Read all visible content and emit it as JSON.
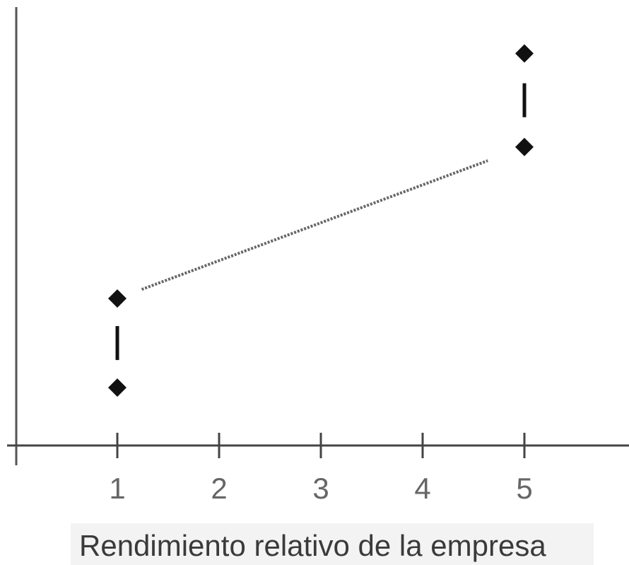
{
  "chart_data": {
    "type": "scatter",
    "title": "",
    "xlabel": "Rendimiento relativo de la empresa",
    "ylabel": "",
    "x_ticks": [
      "1",
      "2",
      "3",
      "4",
      "5"
    ],
    "xlim": [
      0,
      6
    ],
    "ylim": [
      0,
      10
    ],
    "grid": false,
    "points": [
      {
        "x": 1,
        "y": 1.3
      },
      {
        "x": 1,
        "y": 3.3
      },
      {
        "x": 5,
        "y": 6.7
      },
      {
        "x": 5,
        "y": 8.8
      }
    ],
    "ranges": [
      {
        "x": 1,
        "low": 1.3,
        "high": 3.3
      },
      {
        "x": 5,
        "low": 6.7,
        "high": 8.8
      }
    ],
    "trend_line": {
      "from": {
        "x": 1,
        "y": 3.3
      },
      "to": {
        "x": 5,
        "y": 6.7
      },
      "style": "dotted"
    }
  }
}
